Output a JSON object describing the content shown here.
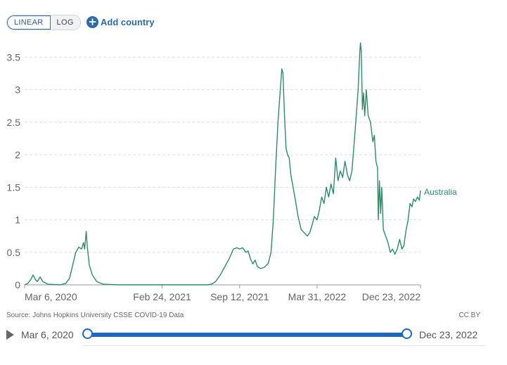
{
  "controls": {
    "linear_label": "LINEAR",
    "log_label": "LOG",
    "add_country_label": "Add country",
    "scale": "linear"
  },
  "footer": {
    "source": "Source: Johns Hopkins University CSSE COVID-19 Data",
    "license": "CC BY"
  },
  "timeline": {
    "start_label": "Mar 6, 2020",
    "end_label": "Dec 23, 2022"
  },
  "colors": {
    "series": "#2e8b6a",
    "grid": "#dddddd",
    "accent": "#1b67c6"
  },
  "chart_data": {
    "type": "line",
    "title": "",
    "xlabel": "",
    "ylabel": "",
    "x_range": [
      "2020-03-06",
      "2022-12-23"
    ],
    "ylim": [
      0,
      3.6
    ],
    "y_ticks": [
      0,
      0.5,
      1,
      1.5,
      2,
      2.5,
      3,
      3.5
    ],
    "y_tick_labels": [
      "0",
      "0.5",
      "1",
      "1.5",
      "2",
      "2.5",
      "3",
      "3.5"
    ],
    "x_ticks": [
      {
        "date": "2020-03-06",
        "label": "Mar 6, 2020"
      },
      {
        "date": "2021-02-24",
        "label": "Feb 24, 2021"
      },
      {
        "date": "2021-09-12",
        "label": "Sep 12, 2021"
      },
      {
        "date": "2022-03-31",
        "label": "Mar 31, 2022"
      },
      {
        "date": "2022-12-23",
        "label": "Dec 23, 2022"
      }
    ],
    "grid": true,
    "series": [
      {
        "name": "Australia",
        "points": [
          [
            "2020-03-06",
            0.0
          ],
          [
            "2020-03-14",
            0.02
          ],
          [
            "2020-03-22",
            0.08
          ],
          [
            "2020-03-28",
            0.15
          ],
          [
            "2020-04-03",
            0.08
          ],
          [
            "2020-04-08",
            0.05
          ],
          [
            "2020-04-15",
            0.12
          ],
          [
            "2020-04-22",
            0.05
          ],
          [
            "2020-05-05",
            0.01
          ],
          [
            "2020-06-05",
            0.0
          ],
          [
            "2020-06-20",
            0.02
          ],
          [
            "2020-06-30",
            0.1
          ],
          [
            "2020-07-08",
            0.3
          ],
          [
            "2020-07-16",
            0.5
          ],
          [
            "2020-07-24",
            0.58
          ],
          [
            "2020-07-31",
            0.55
          ],
          [
            "2020-08-05",
            0.65
          ],
          [
            "2020-08-08",
            0.55
          ],
          [
            "2020-08-12",
            0.82
          ],
          [
            "2020-08-15",
            0.58
          ],
          [
            "2020-08-20",
            0.3
          ],
          [
            "2020-08-28",
            0.15
          ],
          [
            "2020-09-08",
            0.05
          ],
          [
            "2020-09-25",
            0.01
          ],
          [
            "2020-11-01",
            0.0
          ],
          [
            "2021-02-24",
            0.0
          ],
          [
            "2021-06-20",
            0.0
          ],
          [
            "2021-07-01",
            0.01
          ],
          [
            "2021-07-12",
            0.05
          ],
          [
            "2021-07-24",
            0.15
          ],
          [
            "2021-08-05",
            0.28
          ],
          [
            "2021-08-16",
            0.4
          ],
          [
            "2021-08-27",
            0.55
          ],
          [
            "2021-09-05",
            0.57
          ],
          [
            "2021-09-12",
            0.55
          ],
          [
            "2021-09-20",
            0.57
          ],
          [
            "2021-09-28",
            0.5
          ],
          [
            "2021-10-04",
            0.52
          ],
          [
            "2021-10-10",
            0.4
          ],
          [
            "2021-10-16",
            0.32
          ],
          [
            "2021-10-22",
            0.38
          ],
          [
            "2021-10-28",
            0.28
          ],
          [
            "2021-11-05",
            0.25
          ],
          [
            "2021-11-15",
            0.27
          ],
          [
            "2021-11-25",
            0.33
          ],
          [
            "2021-12-02",
            0.5
          ],
          [
            "2021-12-08",
            1.0
          ],
          [
            "2021-12-14",
            1.8
          ],
          [
            "2021-12-20",
            2.5
          ],
          [
            "2021-12-26",
            3.0
          ],
          [
            "2021-12-30",
            3.32
          ],
          [
            "2022-01-02",
            3.25
          ],
          [
            "2022-01-06",
            2.6
          ],
          [
            "2022-01-10",
            2.1
          ],
          [
            "2022-01-14",
            2.0
          ],
          [
            "2022-01-18",
            1.95
          ],
          [
            "2022-01-22",
            1.7
          ],
          [
            "2022-01-28",
            1.5
          ],
          [
            "2022-02-03",
            1.3
          ],
          [
            "2022-02-10",
            1.05
          ],
          [
            "2022-02-18",
            0.85
          ],
          [
            "2022-02-26",
            0.8
          ],
          [
            "2022-03-06",
            0.75
          ],
          [
            "2022-03-12",
            0.8
          ],
          [
            "2022-03-18",
            0.92
          ],
          [
            "2022-03-24",
            1.05
          ],
          [
            "2022-03-31",
            1.0
          ],
          [
            "2022-04-06",
            1.15
          ],
          [
            "2022-04-12",
            1.35
          ],
          [
            "2022-04-18",
            1.25
          ],
          [
            "2022-04-24",
            1.5
          ],
          [
            "2022-04-30",
            1.35
          ],
          [
            "2022-05-06",
            1.55
          ],
          [
            "2022-05-12",
            1.4
          ],
          [
            "2022-05-18",
            1.95
          ],
          [
            "2022-05-24",
            1.6
          ],
          [
            "2022-05-30",
            1.75
          ],
          [
            "2022-06-05",
            1.65
          ],
          [
            "2022-06-11",
            1.9
          ],
          [
            "2022-06-17",
            1.7
          ],
          [
            "2022-06-23",
            1.6
          ],
          [
            "2022-06-29",
            1.75
          ],
          [
            "2022-07-05",
            2.2
          ],
          [
            "2022-07-10",
            2.6
          ],
          [
            "2022-07-15",
            3.0
          ],
          [
            "2022-07-19",
            3.55
          ],
          [
            "2022-07-21",
            3.72
          ],
          [
            "2022-07-23",
            3.6
          ],
          [
            "2022-07-26",
            2.7
          ],
          [
            "2022-07-29",
            2.95
          ],
          [
            "2022-08-01",
            2.6
          ],
          [
            "2022-08-05",
            3.0
          ],
          [
            "2022-08-10",
            2.6
          ],
          [
            "2022-08-16",
            2.5
          ],
          [
            "2022-08-22",
            2.2
          ],
          [
            "2022-08-26",
            2.3
          ],
          [
            "2022-08-30",
            1.9
          ],
          [
            "2022-09-03",
            1.8
          ],
          [
            "2022-09-05",
            1.0
          ],
          [
            "2022-09-08",
            1.6
          ],
          [
            "2022-09-11",
            1.1
          ],
          [
            "2022-09-14",
            1.5
          ],
          [
            "2022-09-18",
            0.85
          ],
          [
            "2022-09-24",
            0.75
          ],
          [
            "2022-09-30",
            0.65
          ],
          [
            "2022-10-06",
            0.5
          ],
          [
            "2022-10-12",
            0.55
          ],
          [
            "2022-10-18",
            0.47
          ],
          [
            "2022-10-24",
            0.55
          ],
          [
            "2022-10-30",
            0.7
          ],
          [
            "2022-11-05",
            0.55
          ],
          [
            "2022-11-10",
            0.6
          ],
          [
            "2022-11-16",
            0.85
          ],
          [
            "2022-11-21",
            1.0
          ],
          [
            "2022-11-26",
            1.25
          ],
          [
            "2022-12-01",
            1.2
          ],
          [
            "2022-12-05",
            1.32
          ],
          [
            "2022-12-10",
            1.28
          ],
          [
            "2022-12-15",
            1.35
          ],
          [
            "2022-12-20",
            1.3
          ],
          [
            "2022-12-23",
            1.45
          ]
        ]
      }
    ]
  }
}
